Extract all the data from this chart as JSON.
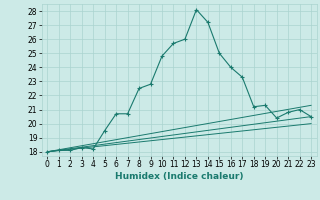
{
  "xlabel": "Humidex (Indice chaleur)",
  "background_color": "#cceae7",
  "grid_color": "#aad4d0",
  "line_color": "#1a7a6e",
  "xlim": [
    -0.5,
    23.5
  ],
  "ylim": [
    17.7,
    28.5
  ],
  "xticks": [
    0,
    1,
    2,
    3,
    4,
    5,
    6,
    7,
    8,
    9,
    10,
    11,
    12,
    13,
    14,
    15,
    16,
    17,
    18,
    19,
    20,
    21,
    22,
    23
  ],
  "yticks": [
    18,
    19,
    20,
    21,
    22,
    23,
    24,
    25,
    26,
    27,
    28
  ],
  "humidex_x": [
    0,
    1,
    2,
    3,
    4,
    5,
    6,
    7,
    8,
    9,
    10,
    11,
    12,
    13,
    14,
    15,
    16,
    17,
    18,
    19,
    20,
    21,
    22,
    23
  ],
  "humidex_y": [
    18.0,
    18.1,
    18.1,
    18.3,
    18.2,
    19.5,
    20.7,
    20.7,
    22.5,
    22.8,
    24.8,
    25.7,
    26.0,
    28.1,
    27.2,
    25.0,
    24.0,
    23.3,
    21.2,
    21.3,
    20.4,
    20.8,
    21.0,
    20.5
  ],
  "line2_y_start": 18.0,
  "line2_y_end": 20.0,
  "line3_y_start": 18.0,
  "line3_y_end": 20.5,
  "line4_y_start": 18.0,
  "line4_y_end": 21.3,
  "tick_fontsize": 5.5,
  "xlabel_fontsize": 6.5
}
